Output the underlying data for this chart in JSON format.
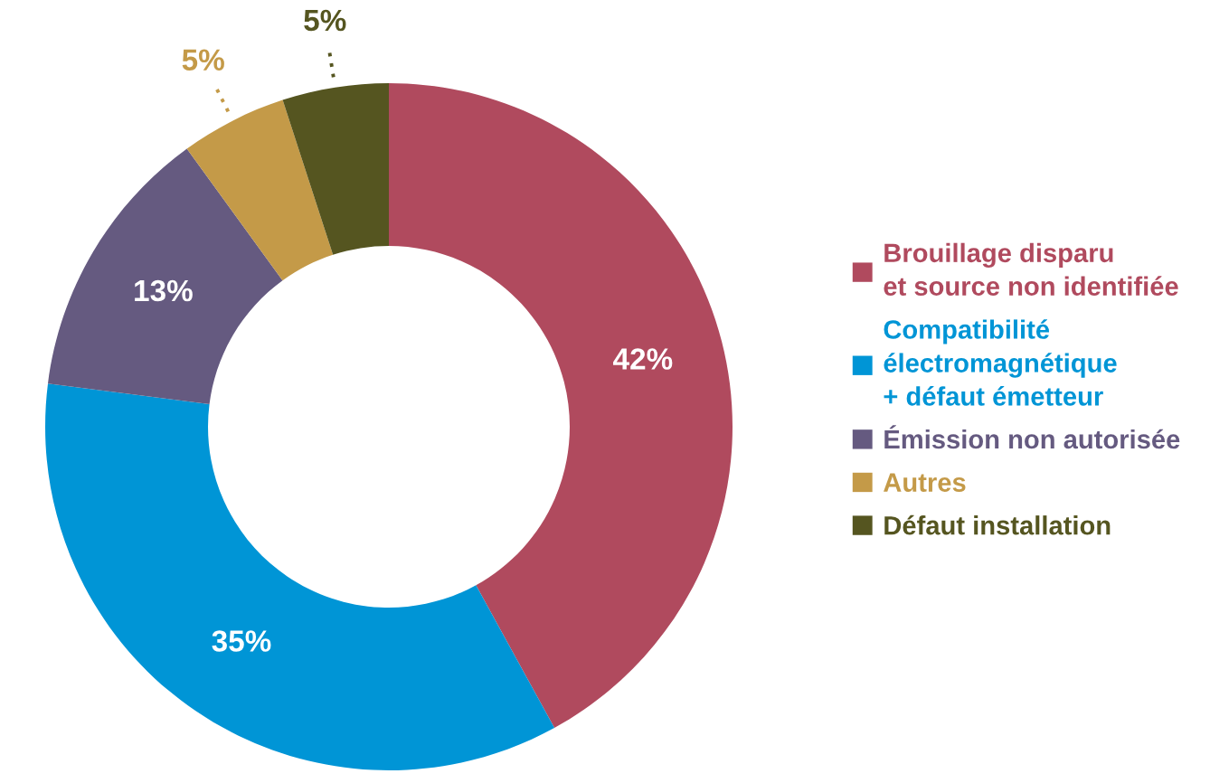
{
  "chart_data": {
    "type": "donut",
    "categories": [
      "Brouillage disparu\net source non identifiée",
      "Compatibilité\nélectromagnétique\n+ défaut émetteur",
      "Émission non autorisée",
      "Autres",
      "Défaut installation"
    ],
    "values": [
      42,
      35,
      13,
      5,
      5
    ],
    "value_labels": [
      "42%",
      "35%",
      "13%",
      "5%",
      "5%"
    ],
    "colors": [
      "#b04a5e",
      "#0095d6",
      "#655a80",
      "#c49a48",
      "#555520"
    ],
    "legend": "right"
  }
}
